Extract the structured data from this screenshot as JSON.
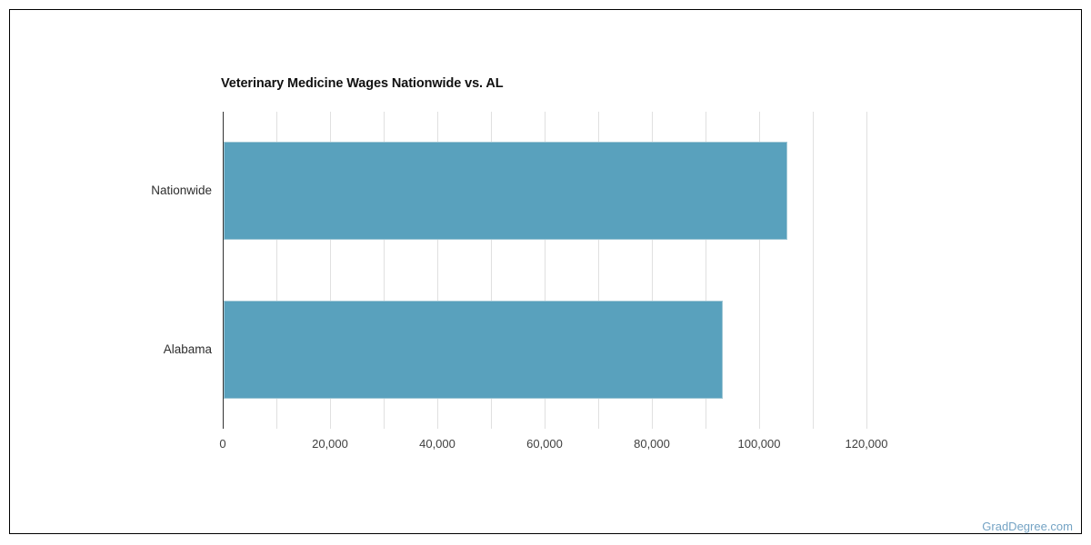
{
  "chart_data": {
    "type": "bar",
    "orientation": "horizontal",
    "title": "Veterinary Medicine Wages Nationwide vs. AL",
    "categories": [
      "Nationwide",
      "Alabama"
    ],
    "values": [
      105000,
      93000
    ],
    "xlabel": "",
    "ylabel": "",
    "xlim": [
      0,
      120000
    ],
    "gridline_step": 10000,
    "tick_step": 20000,
    "tick_labels": [
      "0",
      "20,000",
      "40,000",
      "60,000",
      "80,000",
      "100,000",
      "120,000"
    ],
    "grid": true,
    "legend": false,
    "colors": {
      "bar_fill": "#59a1bd",
      "bar_stroke": "#9fc7d5",
      "gridline": "#e0e0e0",
      "axis_line": "#333333",
      "tick_label": "#3f3f3f",
      "category_label": "#2e2e2e",
      "title": "#111111"
    }
  },
  "footer": {
    "watermark": "GradDegree.com",
    "watermark_color": "#74a3c4"
  }
}
